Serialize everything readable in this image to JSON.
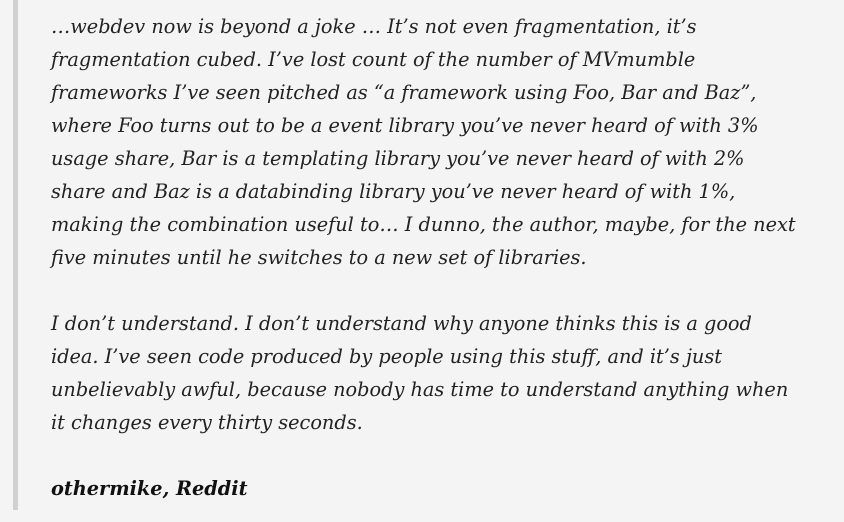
{
  "blockquote": {
    "paragraphs": [
      {
        "lines": [
          "…webdev now is beyond a joke … It’s not even fragmentation, it’s",
          "fragmentation cubed. I’ve lost count of the number of MVmumble",
          "frameworks I’ve seen pitched as “a framework using Foo, Bar and Baz”,",
          "where Foo turns out to be a event library you’ve never heard of with 3%",
          "usage share, Bar is a templating library you’ve never heard of with 2%",
          "share and Baz is a databinding library you’ve never heard of with 1%,",
          "making the combination useful to… I dunno, the author, maybe, for the next",
          "five minutes until he switches to a new set of libraries."
        ]
      },
      {
        "lines": [
          "I don’t understand. I don’t understand why anyone thinks this is a good",
          "idea. I’ve seen code produced by people using this stuff, and it’s just",
          "unbelievably awful, because nobody has time to understand anything when",
          "it changes every thirty seconds."
        ]
      }
    ],
    "attribution": "othermike, Reddit"
  },
  "colors": {
    "background": "#f4f4f4",
    "border": "#d0d0d0",
    "text": "#222222"
  }
}
